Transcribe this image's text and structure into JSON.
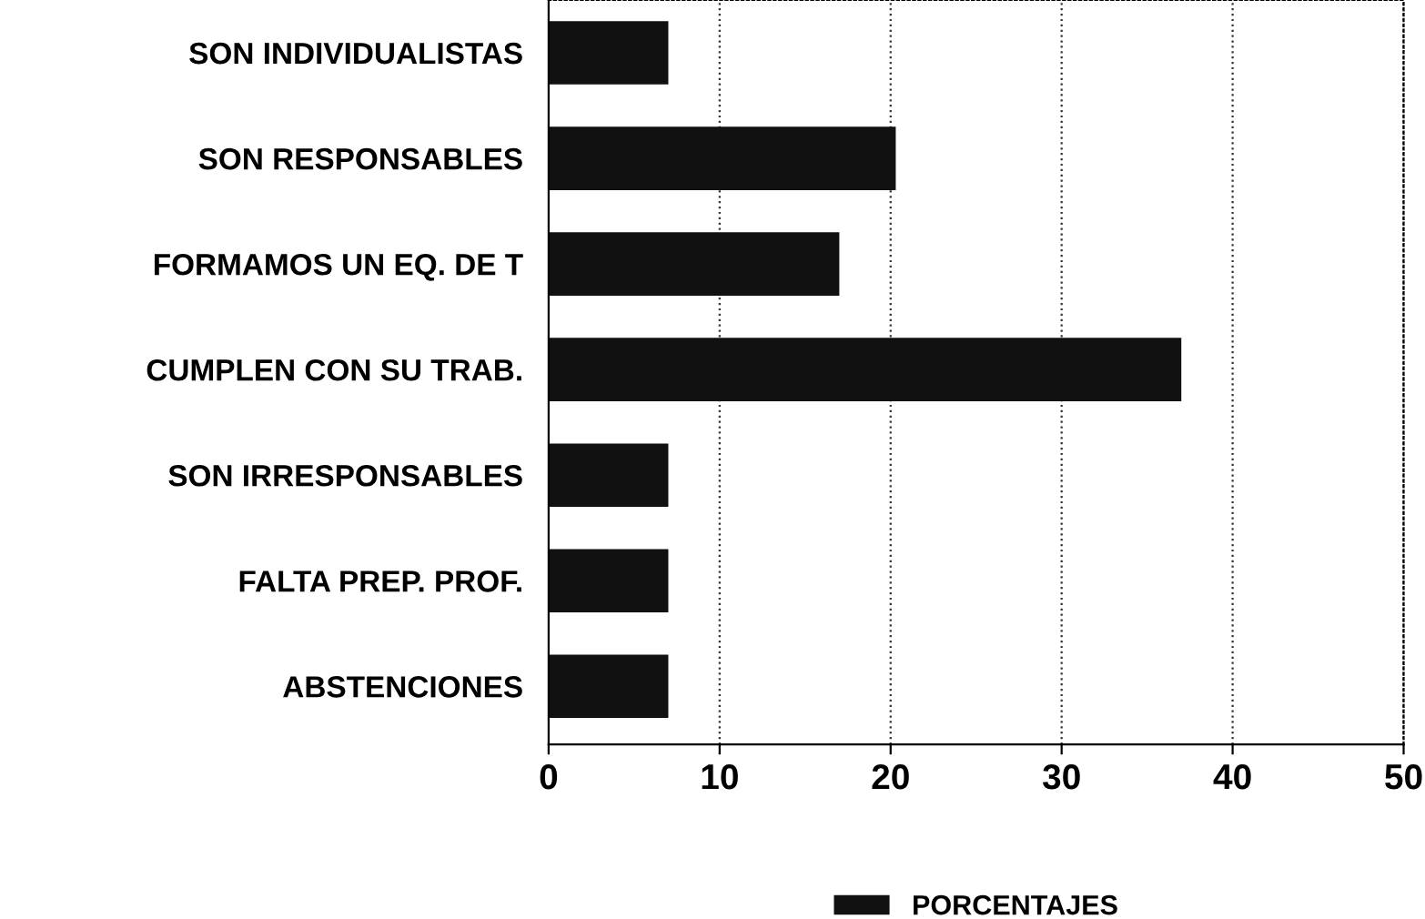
{
  "chart_data": {
    "type": "bar",
    "orientation": "horizontal",
    "categories": [
      "SON INDIVIDUALISTAS",
      "SON RESPONSABLES",
      "FORMAMOS UN EQ. DE T",
      "CUMPLEN CON SU TRAB.",
      "SON IRRESPONSABLES",
      "FALTA PREP. PROF.",
      "ABSTENCIONES"
    ],
    "series": [
      {
        "name": "PORCENTAJES",
        "color": "#111111",
        "values": [
          7,
          20.3,
          17,
          37,
          7,
          7,
          7
        ]
      }
    ],
    "xlim": [
      0,
      50
    ],
    "xticks": [
      0,
      10,
      20,
      30,
      40,
      50
    ],
    "grid": "x",
    "legend": "bottom"
  }
}
